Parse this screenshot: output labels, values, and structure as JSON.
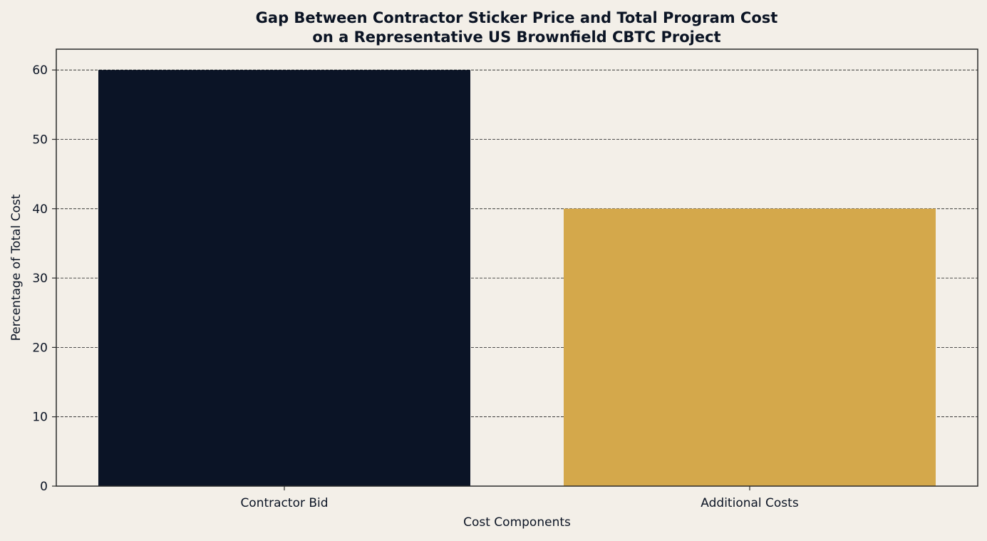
{
  "chart_data": {
    "type": "bar",
    "title_lines": [
      "Gap Between Contractor Sticker Price and Total Program Cost",
      "on a Representative US Brownfield CBTC Project"
    ],
    "xlabel": "Cost Components",
    "ylabel": "Percentage of Total Cost",
    "categories": [
      "Contractor Bid",
      "Additional Costs"
    ],
    "values": [
      60,
      40
    ],
    "colors": [
      "#0b1426",
      "#d4a84b"
    ],
    "ylim": [
      0,
      63
    ],
    "yticks": [
      0,
      10,
      20,
      30,
      40,
      50,
      60
    ],
    "grid": "horizontal-dashed",
    "background": "#f3efe8",
    "text_color": "#0b1424"
  }
}
